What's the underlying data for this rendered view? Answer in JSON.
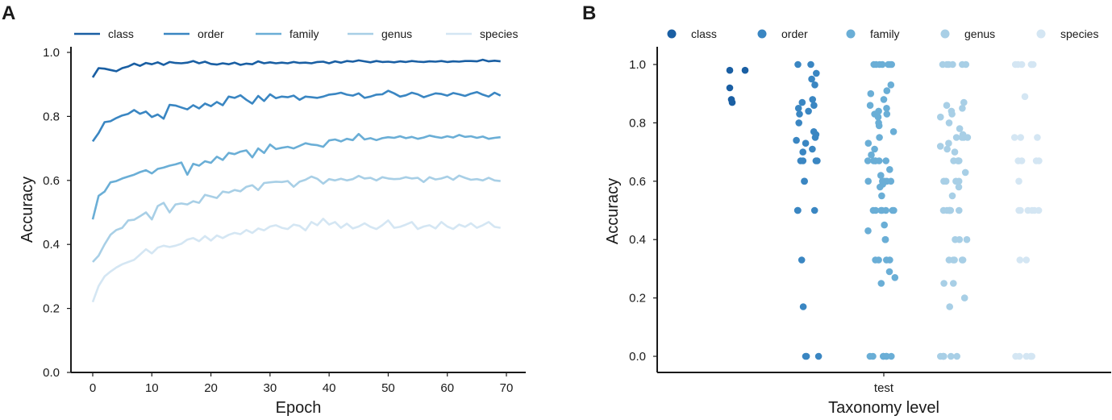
{
  "colors": {
    "class": "#1a5fa3",
    "order": "#3a86c2",
    "family": "#6aaed6",
    "genus": "#a8cfe6",
    "species": "#d4e6f3"
  },
  "chart_data": [
    {
      "panel": "A",
      "type": "line",
      "xlabel": "Epoch",
      "ylabel": "Accuracy",
      "xlim": [
        -2,
        71
      ],
      "ylim": [
        0.0,
        1.0
      ],
      "xticks": [
        0,
        10,
        20,
        30,
        40,
        50,
        60,
        70
      ],
      "yticks": [
        "0.0",
        "0.2",
        "0.4",
        "0.6",
        "0.8",
        "1.0"
      ],
      "legend": [
        "class",
        "order",
        "family",
        "genus",
        "species"
      ],
      "series": [
        {
          "name": "class",
          "values": [
            0.922,
            0.951,
            0.949,
            0.945,
            0.941,
            0.951,
            0.956,
            0.965,
            0.958,
            0.967,
            0.963,
            0.969,
            0.961,
            0.97,
            0.967,
            0.966,
            0.968,
            0.973,
            0.966,
            0.971,
            0.964,
            0.962,
            0.966,
            0.963,
            0.968,
            0.961,
            0.965,
            0.963,
            0.972,
            0.966,
            0.969,
            0.966,
            0.968,
            0.966,
            0.97,
            0.967,
            0.968,
            0.966,
            0.97,
            0.971,
            0.966,
            0.972,
            0.968,
            0.973,
            0.971,
            0.975,
            0.972,
            0.969,
            0.973,
            0.97,
            0.971,
            0.969,
            0.972,
            0.97,
            0.973,
            0.971,
            0.97,
            0.972,
            0.971,
            0.973,
            0.97,
            0.972,
            0.971,
            0.973,
            0.973,
            0.972,
            0.977,
            0.972,
            0.974,
            0.972
          ]
        },
        {
          "name": "order",
          "values": [
            0.722,
            0.748,
            0.782,
            0.785,
            0.795,
            0.803,
            0.808,
            0.82,
            0.808,
            0.815,
            0.798,
            0.806,
            0.793,
            0.836,
            0.834,
            0.828,
            0.822,
            0.835,
            0.825,
            0.84,
            0.832,
            0.845,
            0.835,
            0.862,
            0.858,
            0.866,
            0.852,
            0.84,
            0.864,
            0.848,
            0.869,
            0.857,
            0.862,
            0.86,
            0.865,
            0.852,
            0.862,
            0.86,
            0.858,
            0.862,
            0.868,
            0.87,
            0.874,
            0.868,
            0.865,
            0.872,
            0.858,
            0.862,
            0.868,
            0.869,
            0.88,
            0.872,
            0.862,
            0.866,
            0.874,
            0.869,
            0.86,
            0.866,
            0.872,
            0.87,
            0.865,
            0.873,
            0.869,
            0.864,
            0.871,
            0.876,
            0.868,
            0.862,
            0.874,
            0.865
          ]
        },
        {
          "name": "family",
          "values": [
            0.478,
            0.552,
            0.565,
            0.594,
            0.598,
            0.606,
            0.612,
            0.618,
            0.626,
            0.632,
            0.622,
            0.636,
            0.64,
            0.646,
            0.65,
            0.656,
            0.618,
            0.652,
            0.646,
            0.66,
            0.655,
            0.674,
            0.664,
            0.686,
            0.682,
            0.69,
            0.694,
            0.672,
            0.7,
            0.686,
            0.712,
            0.698,
            0.702,
            0.705,
            0.7,
            0.708,
            0.716,
            0.712,
            0.71,
            0.705,
            0.725,
            0.728,
            0.722,
            0.73,
            0.726,
            0.745,
            0.728,
            0.732,
            0.726,
            0.732,
            0.735,
            0.733,
            0.738,
            0.732,
            0.736,
            0.73,
            0.734,
            0.74,
            0.736,
            0.733,
            0.738,
            0.734,
            0.742,
            0.736,
            0.738,
            0.733,
            0.737,
            0.73,
            0.733,
            0.735
          ]
        },
        {
          "name": "genus",
          "values": [
            0.345,
            0.365,
            0.4,
            0.43,
            0.445,
            0.452,
            0.475,
            0.477,
            0.488,
            0.5,
            0.478,
            0.52,
            0.53,
            0.5,
            0.525,
            0.528,
            0.525,
            0.535,
            0.53,
            0.555,
            0.55,
            0.545,
            0.565,
            0.562,
            0.57,
            0.566,
            0.58,
            0.585,
            0.57,
            0.592,
            0.594,
            0.596,
            0.595,
            0.598,
            0.58,
            0.596,
            0.602,
            0.612,
            0.605,
            0.59,
            0.604,
            0.6,
            0.605,
            0.6,
            0.604,
            0.614,
            0.606,
            0.608,
            0.6,
            0.61,
            0.606,
            0.604,
            0.605,
            0.61,
            0.606,
            0.608,
            0.595,
            0.61,
            0.603,
            0.606,
            0.612,
            0.602,
            0.615,
            0.608,
            0.602,
            0.604,
            0.6,
            0.608,
            0.6,
            0.598
          ]
        },
        {
          "name": "species",
          "values": [
            0.22,
            0.27,
            0.3,
            0.315,
            0.328,
            0.338,
            0.345,
            0.352,
            0.368,
            0.385,
            0.372,
            0.39,
            0.396,
            0.392,
            0.396,
            0.402,
            0.415,
            0.42,
            0.41,
            0.426,
            0.412,
            0.428,
            0.42,
            0.43,
            0.436,
            0.432,
            0.445,
            0.436,
            0.45,
            0.444,
            0.456,
            0.46,
            0.452,
            0.448,
            0.462,
            0.458,
            0.444,
            0.47,
            0.46,
            0.48,
            0.462,
            0.47,
            0.452,
            0.465,
            0.45,
            0.456,
            0.466,
            0.455,
            0.448,
            0.46,
            0.475,
            0.452,
            0.455,
            0.462,
            0.47,
            0.448,
            0.456,
            0.46,
            0.45,
            0.47,
            0.456,
            0.448,
            0.462,
            0.455,
            0.466,
            0.452,
            0.46,
            0.47,
            0.455,
            0.452
          ]
        }
      ]
    },
    {
      "panel": "B",
      "type": "scatter",
      "xlabel": "Taxonomy level",
      "ylabel": "Accuracy",
      "xtick": "test",
      "ylim": [
        -0.05,
        1.05
      ],
      "yticks": [
        "0.0",
        "0.2",
        "0.4",
        "0.6",
        "0.8",
        "1.0"
      ],
      "legend": [
        "class",
        "order",
        "family",
        "genus",
        "species"
      ],
      "series": [
        {
          "name": "class",
          "values": [
            0.98,
            0.98,
            0.92,
            0.88,
            0.87
          ]
        },
        {
          "name": "order",
          "values": [
            1.0,
            1.0,
            0.97,
            0.95,
            0.93,
            0.88,
            0.87,
            0.86,
            0.85,
            0.84,
            0.83,
            0.8,
            0.77,
            0.76,
            0.75,
            0.74,
            0.73,
            0.71,
            0.7,
            0.67,
            0.67,
            0.67,
            0.67,
            0.6,
            0.6,
            0.5,
            0.5,
            0.5,
            0.33,
            0.17,
            0.0,
            0.0,
            0.0
          ]
        },
        {
          "name": "family",
          "values": [
            1.0,
            1.0,
            1.0,
            1.0,
            1.0,
            1.0,
            1.0,
            0.93,
            0.91,
            0.9,
            0.88,
            0.86,
            0.85,
            0.84,
            0.83,
            0.83,
            0.82,
            0.8,
            0.79,
            0.77,
            0.75,
            0.73,
            0.71,
            0.69,
            0.67,
            0.67,
            0.67,
            0.67,
            0.67,
            0.67,
            0.64,
            0.62,
            0.6,
            0.6,
            0.6,
            0.6,
            0.6,
            0.59,
            0.58,
            0.55,
            0.5,
            0.5,
            0.5,
            0.5,
            0.5,
            0.5,
            0.5,
            0.45,
            0.43,
            0.4,
            0.4,
            0.33,
            0.33,
            0.33,
            0.33,
            0.29,
            0.27,
            0.25,
            0.0,
            0.0,
            0.0,
            0.0,
            0.0,
            0.0,
            0.0
          ]
        },
        {
          "name": "genus",
          "values": [
            1.0,
            1.0,
            1.0,
            1.0,
            1.0,
            1.0,
            0.87,
            0.86,
            0.85,
            0.84,
            0.83,
            0.82,
            0.8,
            0.78,
            0.76,
            0.75,
            0.75,
            0.75,
            0.75,
            0.73,
            0.72,
            0.71,
            0.7,
            0.67,
            0.67,
            0.67,
            0.67,
            0.67,
            0.63,
            0.6,
            0.6,
            0.6,
            0.6,
            0.58,
            0.55,
            0.5,
            0.5,
            0.5,
            0.5,
            0.5,
            0.5,
            0.5,
            0.4,
            0.4,
            0.4,
            0.33,
            0.33,
            0.33,
            0.33,
            0.33,
            0.25,
            0.25,
            0.2,
            0.17,
            0.0,
            0.0,
            0.0,
            0.0,
            0.0,
            0.0
          ]
        },
        {
          "name": "species",
          "values": [
            1.0,
            1.0,
            1.0,
            1.0,
            1.0,
            1.0,
            0.89,
            0.75,
            0.75,
            0.75,
            0.67,
            0.67,
            0.67,
            0.67,
            0.6,
            0.5,
            0.5,
            0.5,
            0.5,
            0.5,
            0.5,
            0.33,
            0.33,
            0.0,
            0.0,
            0.0,
            0.0,
            0.0,
            0.0
          ]
        }
      ]
    }
  ]
}
